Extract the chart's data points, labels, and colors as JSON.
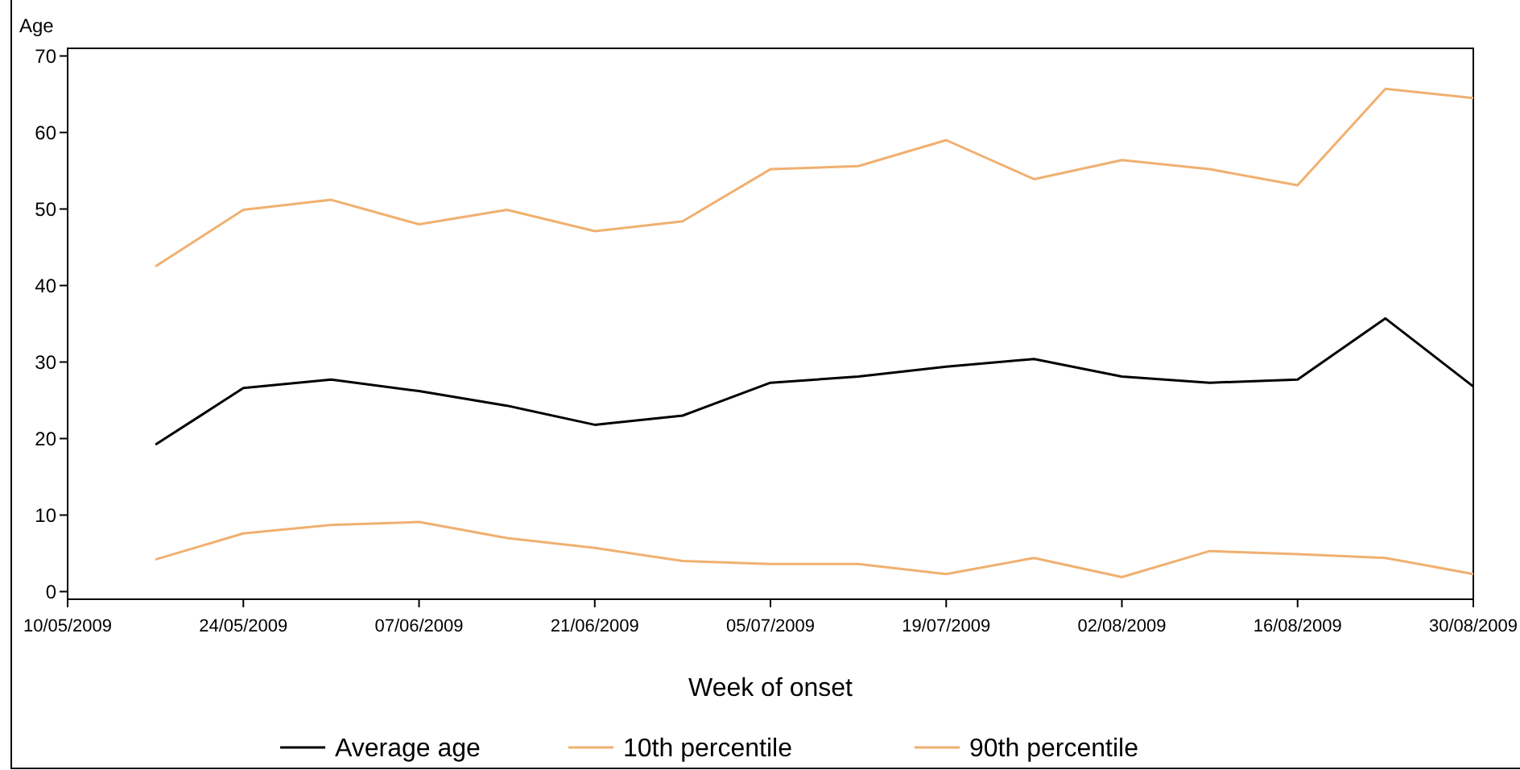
{
  "chart_data": {
    "type": "line",
    "ylabel": "Age",
    "xlabel": "Week of onset",
    "x": [
      "2009-05-17",
      "2009-05-24",
      "2009-05-31",
      "2009-06-07",
      "2009-06-14",
      "2009-06-21",
      "2009-06-28",
      "2009-07-05",
      "2009-07-12",
      "2009-07-19",
      "2009-07-26",
      "2009-08-02",
      "2009-08-09",
      "2009-08-16",
      "2009-08-23",
      "2009-08-30"
    ],
    "series": [
      {
        "name": "Average age",
        "color": "#000000",
        "values": [
          19.2,
          26.6,
          27.7,
          26.2,
          24.3,
          21.8,
          23,
          27.3,
          28.1,
          29.4,
          30.4,
          28.1,
          27.3,
          27.7,
          35.7,
          26.8
        ]
      },
      {
        "name": "10th percentile",
        "color": "#f0b070",
        "values": [
          4.2,
          7.6,
          8.7,
          9.1,
          7,
          5.7,
          4,
          3.6,
          3.6,
          2.3,
          4.4,
          1.9,
          5.3,
          4.9,
          4.4,
          2.3
        ]
      },
      {
        "name": "90th percentile",
        "color": "#f0b070",
        "values": [
          42.5,
          49.9,
          51.2,
          48,
          49.9,
          47.1,
          48.4,
          55.2,
          55.6,
          59,
          53.9,
          56.4,
          55.2,
          53.1,
          65.7,
          64.5
        ]
      }
    ],
    "xlim": [
      "2009-05-10",
      "2009-08-30"
    ],
    "xticks": [
      {
        "value": "2009-05-10",
        "label": "10/05/2009"
      },
      {
        "value": "2009-05-24",
        "label": "24/05/2009"
      },
      {
        "value": "2009-06-07",
        "label": "07/06/2009"
      },
      {
        "value": "2009-06-21",
        "label": "21/06/2009"
      },
      {
        "value": "2009-07-05",
        "label": "05/07/2009"
      },
      {
        "value": "2009-07-19",
        "label": "19/07/2009"
      },
      {
        "value": "2009-08-02",
        "label": "02/08/2009"
      },
      {
        "value": "2009-08-16",
        "label": "16/08/2009"
      },
      {
        "value": "2009-08-30",
        "label": "30/08/2009"
      }
    ],
    "ylim": [
      -1,
      71
    ],
    "yticks": [
      0,
      10,
      20,
      30,
      40,
      50,
      60,
      70
    ],
    "grid": false,
    "legend": "bottom",
    "marker": "none",
    "line_style": "solid"
  }
}
